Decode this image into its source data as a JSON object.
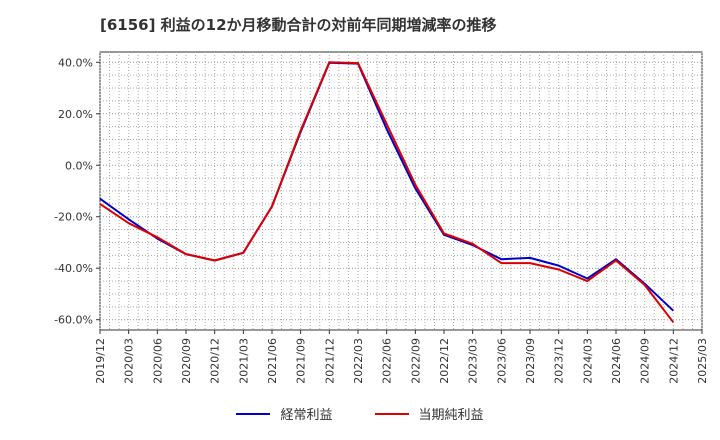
{
  "chart_data": {
    "type": "line",
    "title": "[6156]  利益の12か月移動合計の対前年同期増減率の推移",
    "xlabel": "",
    "ylabel": "",
    "ylim": [
      -64,
      44
    ],
    "yticks": [
      40,
      20,
      0,
      -20,
      -40,
      -60
    ],
    "ytick_labels": [
      "40.0%",
      "20.0%",
      "0.0%",
      "-20.0%",
      "-40.0%",
      "-60.0%"
    ],
    "xtick_labels": [
      "2019/12",
      "2020/03",
      "2020/06",
      "2020/09",
      "2020/12",
      "2021/03",
      "2021/06",
      "2021/09",
      "2021/12",
      "2022/03",
      "2022/06",
      "2022/09",
      "2022/12",
      "2023/03",
      "2023/06",
      "2023/09",
      "2023/12",
      "2024/03",
      "2024/06",
      "2024/09",
      "2024/12",
      "2025/03"
    ],
    "grid": true,
    "series": [
      {
        "name": "経常利益",
        "color": "#0000cc",
        "values": [
          -13,
          -21,
          -28.5,
          -34.5,
          -37,
          -34,
          -16,
          13,
          39.8,
          39.5,
          14,
          -9,
          -27,
          -31,
          -36.5,
          -36,
          -39,
          -44,
          -36.5,
          -46,
          -56.5
        ]
      },
      {
        "name": "当期純利益",
        "color": "#dd0000",
        "values": [
          -15,
          -22.5,
          -28,
          -34.5,
          -37,
          -34,
          -16,
          13.5,
          40,
          39.7,
          16,
          -7.5,
          -26.5,
          -30.5,
          -38,
          -38,
          -40.5,
          -45,
          -37,
          -46.5,
          -61
        ]
      }
    ]
  },
  "legend": {
    "series1": "経常利益",
    "series2": "当期純利益"
  }
}
